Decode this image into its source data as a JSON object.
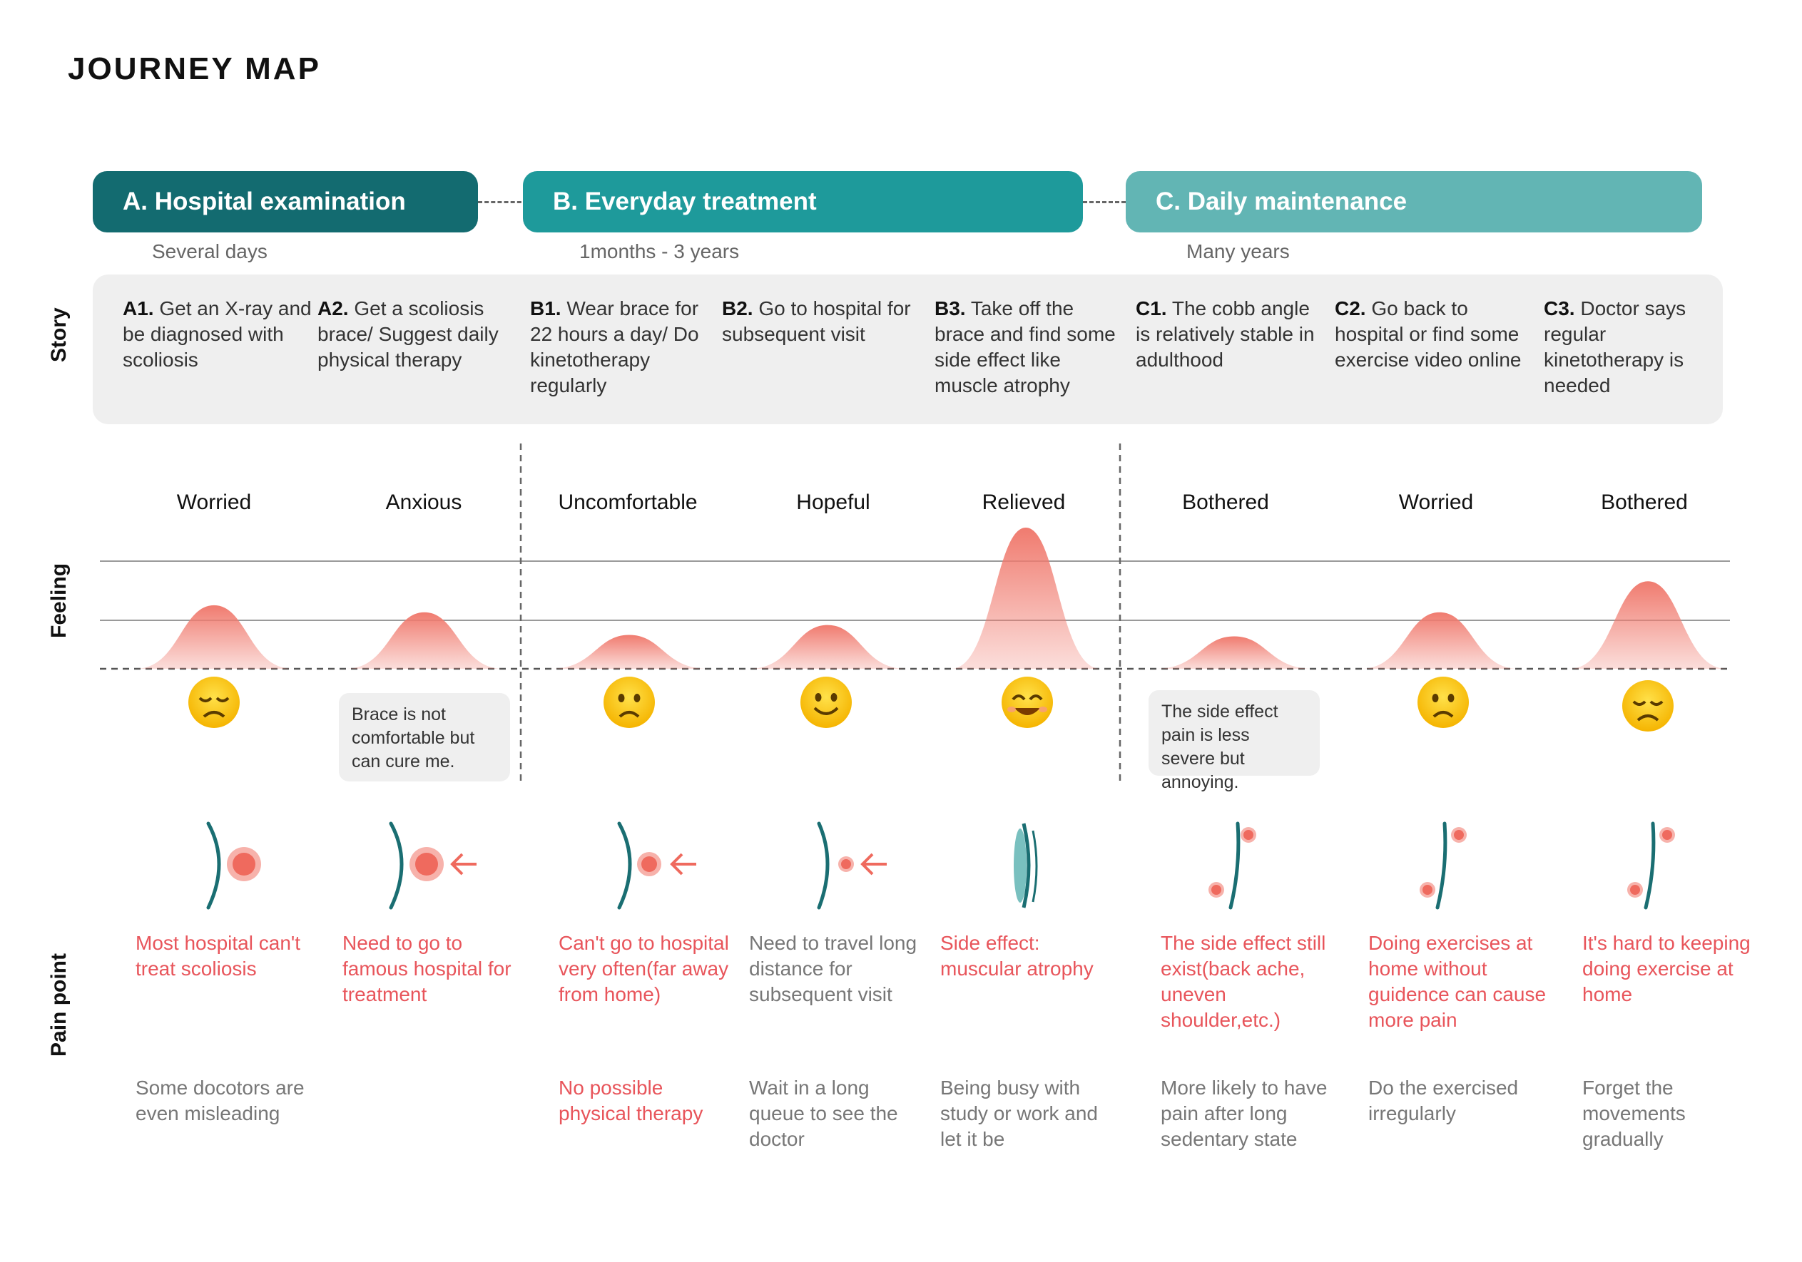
{
  "title": "JOURNEY MAP",
  "colors": {
    "phase_a": "#136b70",
    "phase_b": "#1e9a9b",
    "phase_c": "#62b5b4",
    "curve": "#f07b6f",
    "spine": "#1a6e72",
    "red_text": "#e8555b",
    "grey_text": "#777777"
  },
  "phases": [
    {
      "label": "A. Hospital examination",
      "duration": "Several days"
    },
    {
      "label": "B. Everyday treatment",
      "duration": "1months - 3 years"
    },
    {
      "label": "C. Daily maintenance",
      "duration": "Many years"
    }
  ],
  "row_labels": {
    "story": "Story",
    "feeling": "Feeling",
    "pain": "Pain point"
  },
  "stories": [
    {
      "code": "A1.",
      "text": "Get an X-ray and be diagnosed with scoliosis"
    },
    {
      "code": "A2.",
      "text": "Get a scoliosis brace/ Suggest daily physical therapy"
    },
    {
      "code": "B1.",
      "text": "Wear brace for 22 hours a day/ Do kinetotherapy regularly"
    },
    {
      "code": "B2.",
      "text": "Go to hospital for subsequent visit"
    },
    {
      "code": "B3.",
      "text": "Take off the brace and find some side effect like muscle atrophy"
    },
    {
      "code": "C1.",
      "text": "The cobb angle is relatively stable in adulthood"
    },
    {
      "code": "C2.",
      "text": "Go back to hospital or find some exercise video online"
    },
    {
      "code": "C3.",
      "text": "Doctor says regular kinetotherapy is needed"
    }
  ],
  "feelings": [
    {
      "label": "Worried",
      "level": 0.45,
      "face": "sad-face-icon"
    },
    {
      "label": "Anxious",
      "level": 0.4,
      "face": null
    },
    {
      "label": "Uncomfortable",
      "level": 0.24,
      "face": "frown-face-icon"
    },
    {
      "label": "Hopeful",
      "level": 0.31,
      "face": "smile-face-icon"
    },
    {
      "label": "Relieved",
      "level": 1.0,
      "face": "happy-face-icon"
    },
    {
      "label": "Bothered",
      "level": 0.23,
      "face": null
    },
    {
      "label": "Worried",
      "level": 0.4,
      "face": "frown-face-icon"
    },
    {
      "label": "Bothered",
      "level": 0.62,
      "face": "sad-face-icon"
    }
  ],
  "notes": [
    {
      "text": "Brace is not comfortable but can cure me."
    },
    {
      "text": "The side effect pain is less severe but annoying."
    }
  ],
  "pain_points": [
    {
      "primary": "Most hospital can't treat scoliosis",
      "primary_color": "red",
      "secondary": "Some docotors are even misleading",
      "secondary_color": "grey"
    },
    {
      "primary": "Need to go to famous hospital for treatment",
      "primary_color": "red",
      "secondary": "",
      "secondary_color": "grey"
    },
    {
      "primary": "Can't go to hospital very often(far away from home)",
      "primary_color": "red",
      "secondary": "No possible physical therapy",
      "secondary_color": "red"
    },
    {
      "primary": "Need to travel long distance for subsequent visit",
      "primary_color": "grey",
      "secondary": "Wait in a long queue to see the doctor",
      "secondary_color": "grey"
    },
    {
      "primary": "Side effect: muscular atrophy",
      "primary_color": "red",
      "secondary": "Being busy with study or work and let it be",
      "secondary_color": "grey"
    },
    {
      "primary": "The side effect still exist(back ache, uneven shoulder,etc.)",
      "primary_color": "red",
      "secondary": "More likely to have pain after long sedentary state",
      "secondary_color": "grey"
    },
    {
      "primary": "Doing exercises at home without guidence can cause more pain",
      "primary_color": "red",
      "secondary": "Do the exercised irregularly",
      "secondary_color": "grey"
    },
    {
      "primary": "It's hard to keeping doing exercise at home",
      "primary_color": "red",
      "secondary": "Forget the movements gradually",
      "secondary_color": "grey"
    }
  ],
  "spine_icons": [
    "spine-large-dot-icon",
    "spine-large-dot-arrow-icon",
    "spine-medium-dot-arrow-icon",
    "spine-small-dot-arrow-icon",
    "spine-brace-icon",
    "spine-two-dots-icon",
    "spine-two-dots-icon",
    "spine-two-dots-icon"
  ]
}
